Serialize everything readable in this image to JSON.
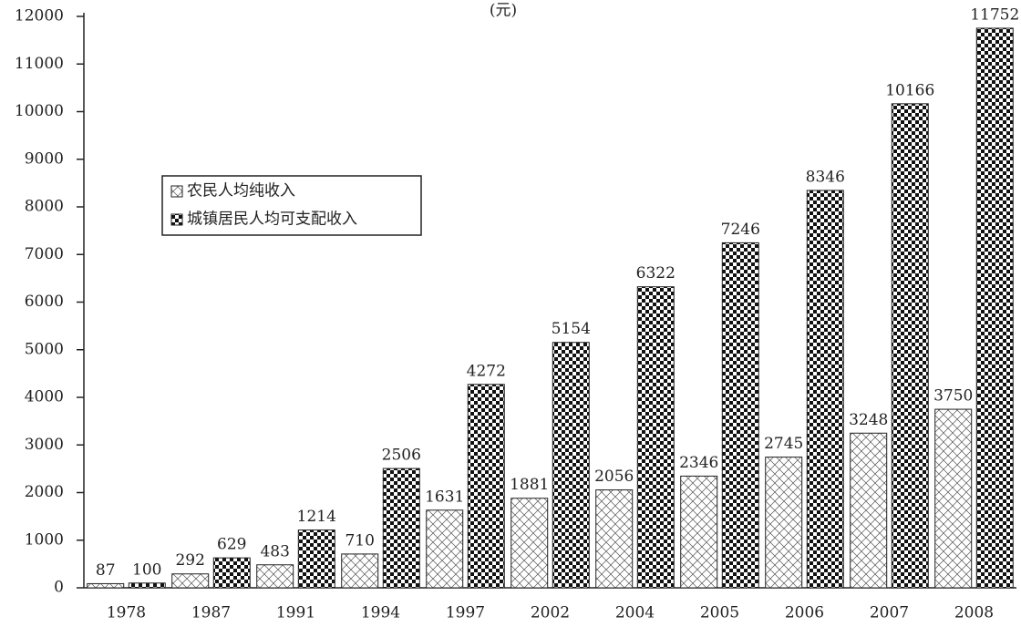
{
  "chart_data": {
    "type": "bar",
    "ylabel": "(元)",
    "categories": [
      "1978",
      "1987",
      "1991",
      "1994",
      "1997",
      "2002",
      "2004",
      "2005",
      "2006",
      "2007",
      "2008"
    ],
    "series": [
      {
        "name": "农民人均纯收入",
        "color": "#555555",
        "pattern": "hatch",
        "values": [
          87,
          292,
          483,
          710,
          1631,
          1881,
          2056,
          2346,
          2745,
          3248,
          3750
        ]
      },
      {
        "name": "城镇居民人均可支配收入",
        "color": "#111111",
        "pattern": "check",
        "values": [
          100,
          629,
          1214,
          2506,
          4272,
          5154,
          6322,
          7246,
          8346,
          10166,
          11752
        ]
      }
    ],
    "ylim": [
      0,
      12000
    ],
    "yticks": [
      0,
      1000,
      2000,
      3000,
      4000,
      5000,
      6000,
      7000,
      8000,
      9000,
      10000,
      11000,
      12000
    ],
    "grid": false,
    "legend": "upper left"
  }
}
